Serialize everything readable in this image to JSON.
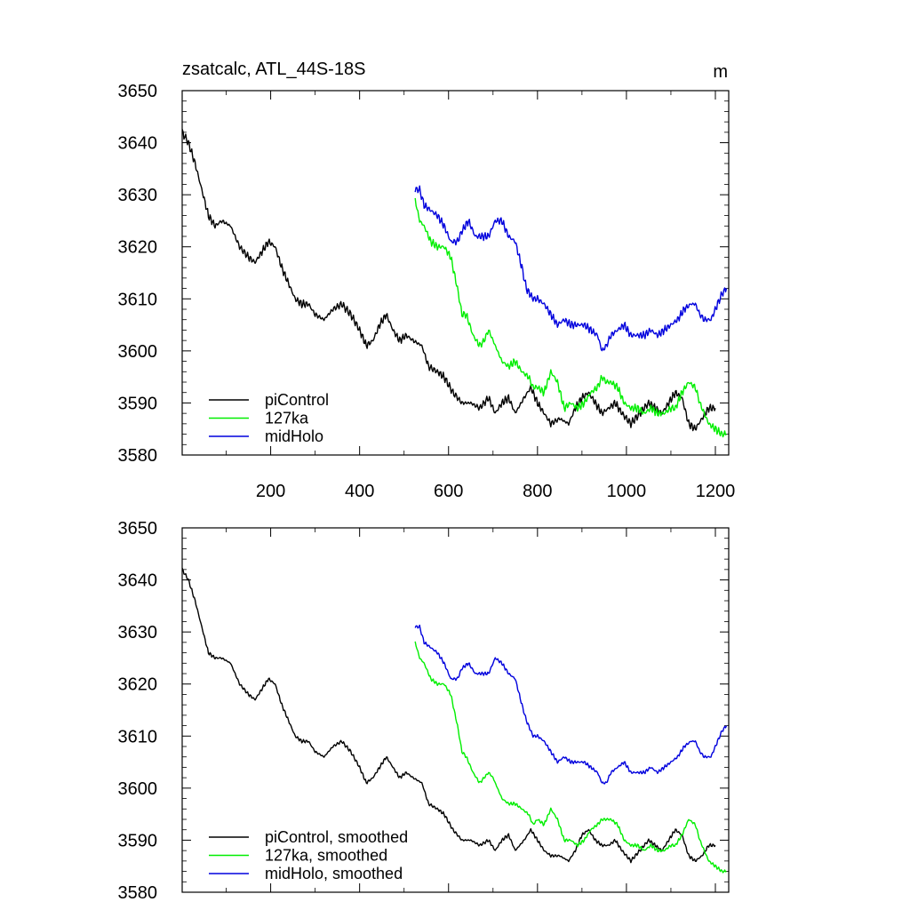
{
  "chart_data": [
    {
      "type": "line",
      "title": "zsatcalc, ATL_44S-18S",
      "units": "m",
      "xlabel": "",
      "ylabel": "",
      "xlim": [
        1,
        1230
      ],
      "ylim": [
        3580,
        3650
      ],
      "x_ticks": [
        200,
        400,
        600,
        800,
        1000,
        1200
      ],
      "x_tick_labels": [
        "200",
        "400",
        "600",
        "800",
        "1000",
        "1200"
      ],
      "y_ticks": [
        3580,
        3590,
        3600,
        3610,
        3620,
        3630,
        3640,
        3650
      ],
      "y_tick_labels": [
        "3580",
        "3590",
        "3600",
        "3610",
        "3620",
        "3630",
        "3640",
        "3650"
      ],
      "legend_position": "bottom-left",
      "series": [
        {
          "name": "piControl",
          "color": "#000000",
          "x": [
            1,
            15,
            30,
            45,
            60,
            75,
            90,
            110,
            130,
            150,
            165,
            180,
            195,
            210,
            225,
            240,
            255,
            270,
            285,
            300,
            320,
            340,
            360,
            380,
            400,
            415,
            430,
            445,
            460,
            475,
            490,
            505,
            520,
            540,
            555,
            575,
            590,
            610,
            630,
            650,
            670,
            690,
            705,
            720,
            735,
            750,
            770,
            785,
            800,
            815,
            830,
            850,
            870,
            885,
            900,
            915,
            930,
            945,
            960,
            975,
            990,
            1010,
            1030,
            1050,
            1065,
            1080,
            1095,
            1110,
            1125,
            1140,
            1155,
            1170,
            1185,
            1200
          ],
          "values": [
            3642,
            3640,
            3636,
            3631,
            3626,
            3624,
            3625,
            3624,
            3620,
            3618,
            3617,
            3619,
            3621,
            3620,
            3616,
            3613,
            3610,
            3609,
            3609,
            3607,
            3606,
            3608,
            3609,
            3607,
            3604,
            3601,
            3602,
            3605,
            3607,
            3604,
            3602,
            3603,
            3602,
            3601,
            3597,
            3596,
            3595,
            3592,
            3590,
            3590,
            3589,
            3591,
            3588,
            3590,
            3591,
            3588,
            3591,
            3593,
            3590,
            3588,
            3586,
            3587,
            3586,
            3589,
            3591,
            3592,
            3590,
            3588,
            3589,
            3590,
            3588,
            3586,
            3588,
            3590,
            3589,
            3588,
            3590,
            3592,
            3591,
            3586,
            3585,
            3587,
            3589,
            3589
          ]
        },
        {
          "name": "127ka",
          "color": "#00ee00",
          "x": [
            525,
            535,
            545,
            560,
            575,
            590,
            605,
            620,
            630,
            640,
            655,
            670,
            680,
            690,
            700,
            710,
            720,
            735,
            750,
            765,
            780,
            790,
            800,
            815,
            830,
            845,
            860,
            875,
            890,
            905,
            920,
            935,
            945,
            955,
            965,
            980,
            995,
            1010,
            1025,
            1040,
            1055,
            1070,
            1085,
            1100,
            1110,
            1125,
            1140,
            1155,
            1165,
            1175,
            1185,
            1200,
            1215,
            1225
          ],
          "values": [
            3629,
            3625,
            3624,
            3621,
            3620,
            3620,
            3618,
            3612,
            3607,
            3607,
            3603,
            3601,
            3602,
            3604,
            3602,
            3600,
            3598,
            3597,
            3598,
            3596,
            3595,
            3593,
            3593,
            3592,
            3596,
            3594,
            3589,
            3590,
            3589,
            3590,
            3592,
            3593,
            3595,
            3594,
            3594,
            3593,
            3590,
            3589,
            3589,
            3588,
            3589,
            3588,
            3588,
            3589,
            3589,
            3592,
            3594,
            3593,
            3590,
            3588,
            3586,
            3585,
            3584,
            3584
          ]
        },
        {
          "name": "midHolo",
          "color": "#0000dd",
          "x": [
            525,
            535,
            545,
            560,
            575,
            590,
            605,
            620,
            630,
            645,
            660,
            675,
            690,
            705,
            720,
            735,
            750,
            765,
            775,
            790,
            800,
            815,
            830,
            845,
            860,
            875,
            890,
            905,
            920,
            935,
            945,
            955,
            965,
            980,
            995,
            1010,
            1025,
            1040,
            1055,
            1070,
            1085,
            1100,
            1115,
            1130,
            1145,
            1155,
            1165,
            1175,
            1190,
            1205,
            1215,
            1225
          ],
          "values": [
            3631,
            3631,
            3628,
            3627,
            3626,
            3624,
            3621,
            3621,
            3623,
            3625,
            3622,
            3622,
            3622,
            3625,
            3625,
            3622,
            3621,
            3616,
            3612,
            3610,
            3610,
            3609,
            3607,
            3605,
            3606,
            3605,
            3605,
            3605,
            3604,
            3603,
            3600,
            3601,
            3603,
            3604,
            3605,
            3603,
            3603,
            3603,
            3604,
            3603,
            3604,
            3605,
            3606,
            3608,
            3609,
            3609,
            3607,
            3606,
            3606,
            3609,
            3611,
            3612
          ]
        }
      ]
    },
    {
      "type": "line",
      "title": "",
      "xlabel": "",
      "ylabel": "",
      "xlim": [
        1,
        1230
      ],
      "ylim": [
        3580,
        3650
      ],
      "x_ticks": [
        200,
        400,
        600,
        800,
        1000,
        1200
      ],
      "y_ticks": [
        3580,
        3590,
        3600,
        3610,
        3620,
        3630,
        3640,
        3650
      ],
      "y_tick_labels": [
        "3580",
        "3590",
        "3600",
        "3610",
        "3620",
        "3630",
        "3640",
        "3650"
      ],
      "legend_position": "bottom-left",
      "series": [
        {
          "name": "piControl, smoothed",
          "color": "#000000",
          "x": [
            1,
            15,
            30,
            45,
            60,
            75,
            90,
            110,
            130,
            150,
            165,
            180,
            195,
            210,
            225,
            240,
            255,
            270,
            285,
            300,
            320,
            340,
            360,
            380,
            400,
            415,
            430,
            445,
            460,
            475,
            490,
            505,
            520,
            540,
            555,
            575,
            590,
            610,
            630,
            650,
            670,
            690,
            705,
            720,
            735,
            750,
            770,
            785,
            800,
            815,
            830,
            850,
            870,
            885,
            900,
            915,
            930,
            945,
            960,
            975,
            990,
            1010,
            1030,
            1050,
            1065,
            1080,
            1095,
            1110,
            1125,
            1140,
            1155,
            1170,
            1185,
            1200
          ],
          "values": [
            3642,
            3640,
            3636,
            3631,
            3626,
            3625,
            3625,
            3624,
            3620,
            3618,
            3617,
            3619,
            3621,
            3620,
            3616,
            3613,
            3610,
            3609,
            3609,
            3607,
            3606,
            3608,
            3609,
            3607,
            3604,
            3601,
            3602,
            3604,
            3606,
            3604,
            3602,
            3603,
            3602,
            3601,
            3597,
            3596,
            3595,
            3592,
            3590,
            3590,
            3589,
            3590,
            3588,
            3590,
            3591,
            3588,
            3590,
            3592,
            3590,
            3588,
            3587,
            3587,
            3586,
            3588,
            3591,
            3592,
            3590,
            3589,
            3589,
            3590,
            3588,
            3586,
            3588,
            3590,
            3589,
            3588,
            3590,
            3592,
            3591,
            3587,
            3586,
            3587,
            3589,
            3589
          ]
        },
        {
          "name": "127ka, smoothed",
          "color": "#00ee00",
          "x": [
            525,
            535,
            545,
            560,
            575,
            590,
            605,
            620,
            630,
            640,
            655,
            670,
            680,
            690,
            700,
            710,
            720,
            735,
            750,
            765,
            780,
            790,
            800,
            815,
            830,
            845,
            860,
            875,
            890,
            905,
            920,
            935,
            945,
            955,
            965,
            980,
            995,
            1010,
            1025,
            1040,
            1055,
            1070,
            1085,
            1100,
            1110,
            1125,
            1140,
            1155,
            1165,
            1175,
            1185,
            1200,
            1215,
            1225
          ],
          "values": [
            3628,
            3625,
            3624,
            3621,
            3620,
            3620,
            3618,
            3612,
            3607,
            3606,
            3603,
            3601,
            3602,
            3603,
            3602,
            3600,
            3598,
            3597,
            3597,
            3596,
            3595,
            3593,
            3594,
            3593,
            3596,
            3594,
            3590,
            3590,
            3589,
            3590,
            3592,
            3593,
            3594,
            3594,
            3594,
            3593,
            3590,
            3589,
            3589,
            3588,
            3589,
            3588,
            3588,
            3589,
            3589,
            3591,
            3594,
            3593,
            3590,
            3588,
            3586,
            3585,
            3584,
            3584
          ]
        },
        {
          "name": "midHolo, smoothed",
          "color": "#0000dd",
          "x": [
            525,
            535,
            545,
            560,
            575,
            590,
            605,
            620,
            630,
            645,
            660,
            675,
            690,
            705,
            720,
            735,
            750,
            765,
            775,
            790,
            800,
            815,
            830,
            845,
            860,
            875,
            890,
            905,
            920,
            935,
            945,
            955,
            965,
            980,
            995,
            1010,
            1025,
            1040,
            1055,
            1070,
            1085,
            1100,
            1115,
            1130,
            1145,
            1155,
            1165,
            1175,
            1190,
            1205,
            1215,
            1225
          ],
          "values": [
            3631,
            3631,
            3628,
            3627,
            3626,
            3624,
            3621,
            3621,
            3623,
            3624,
            3622,
            3622,
            3622,
            3625,
            3624,
            3622,
            3621,
            3616,
            3613,
            3610,
            3610,
            3609,
            3607,
            3605,
            3606,
            3605,
            3605,
            3605,
            3604,
            3603,
            3601,
            3601,
            3603,
            3604,
            3605,
            3603,
            3603,
            3603,
            3604,
            3603,
            3604,
            3605,
            3606,
            3608,
            3609,
            3609,
            3607,
            3606,
            3606,
            3609,
            3611,
            3612
          ]
        }
      ]
    }
  ]
}
